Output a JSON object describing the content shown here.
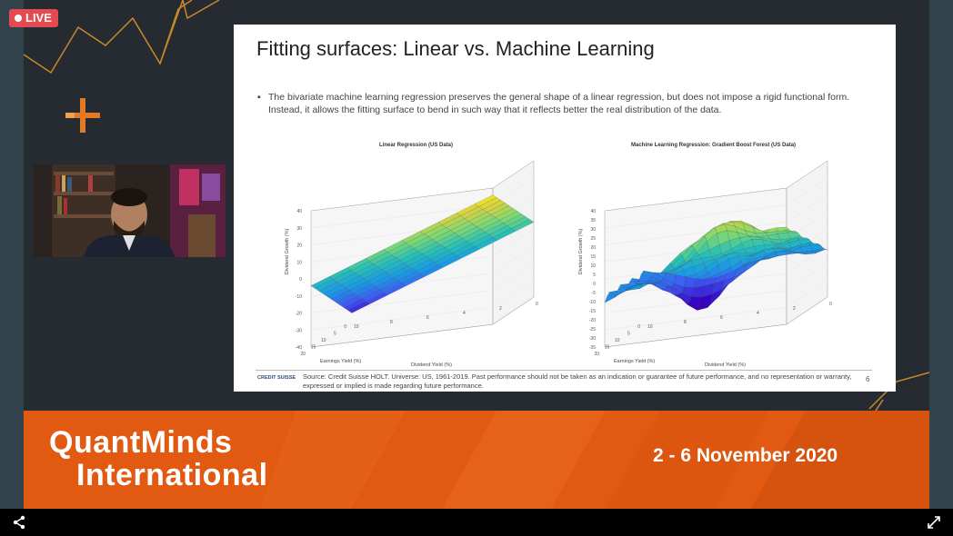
{
  "live_badge": "LIVE",
  "slide": {
    "title": "Fitting surfaces: Linear vs. Machine Learning",
    "bullet": "The bivariate machine learning regression preserves the general shape of a linear regression, but does not impose a rigid functional form. Instead, it allows the fitting surface to bend in such way that it reflects better the real distribution of the data.",
    "plot_left": {
      "title": "Linear Regression (US Data)",
      "zlabel": "Dividend Growth (%)",
      "xlabel": "Earnings Yield (%)",
      "ylabel": "Dividend Yield (%)",
      "z_ticks": [
        "40",
        "30",
        "20",
        "10",
        "0",
        "-10",
        "-20",
        "-30",
        "-40"
      ],
      "ey_ticks": [
        "20",
        "15",
        "10",
        "5",
        "0"
      ],
      "dy_ticks": [
        "10",
        "8",
        "6",
        "4",
        "2",
        "0"
      ]
    },
    "plot_right": {
      "title": "Machine Learning Regression: Gradient Boost Forest (US Data)",
      "zlabel": "Dividend Growth (%)",
      "xlabel": "Earnings Yield (%)",
      "ylabel": "Dividend Yield (%)",
      "z_ticks": [
        "40",
        "35",
        "30",
        "25",
        "20",
        "15",
        "10",
        "5",
        "0",
        "-5",
        "-10",
        "-15",
        "-20",
        "-25",
        "-30",
        "-35"
      ],
      "ey_ticks": [
        "20",
        "15",
        "10",
        "5",
        "0"
      ],
      "dy_ticks": [
        "10",
        "8",
        "6",
        "4",
        "2",
        "0"
      ]
    },
    "footer_logo": "CREDIT SUISSE",
    "footer_source": "Source: Credit Suisse HOLT. Universe: US, 1961-2019. Past performance should not be taken as an indication or guarantee of future performance, and no representation or warranty, expressed or implied is made regarding future performance.",
    "page_number": "6"
  },
  "banner": {
    "brand_line1": "QuantMinds",
    "brand_line2": "International",
    "dates": "2 - 6 November 2020"
  },
  "icons": {
    "share": "share-icon",
    "fullscreen": "fullscreen-icon",
    "plus": "plus-icon"
  },
  "colors": {
    "accent_orange": "#e25a12",
    "live_red": "#e44a4f",
    "stage_bg": "#262a31"
  }
}
